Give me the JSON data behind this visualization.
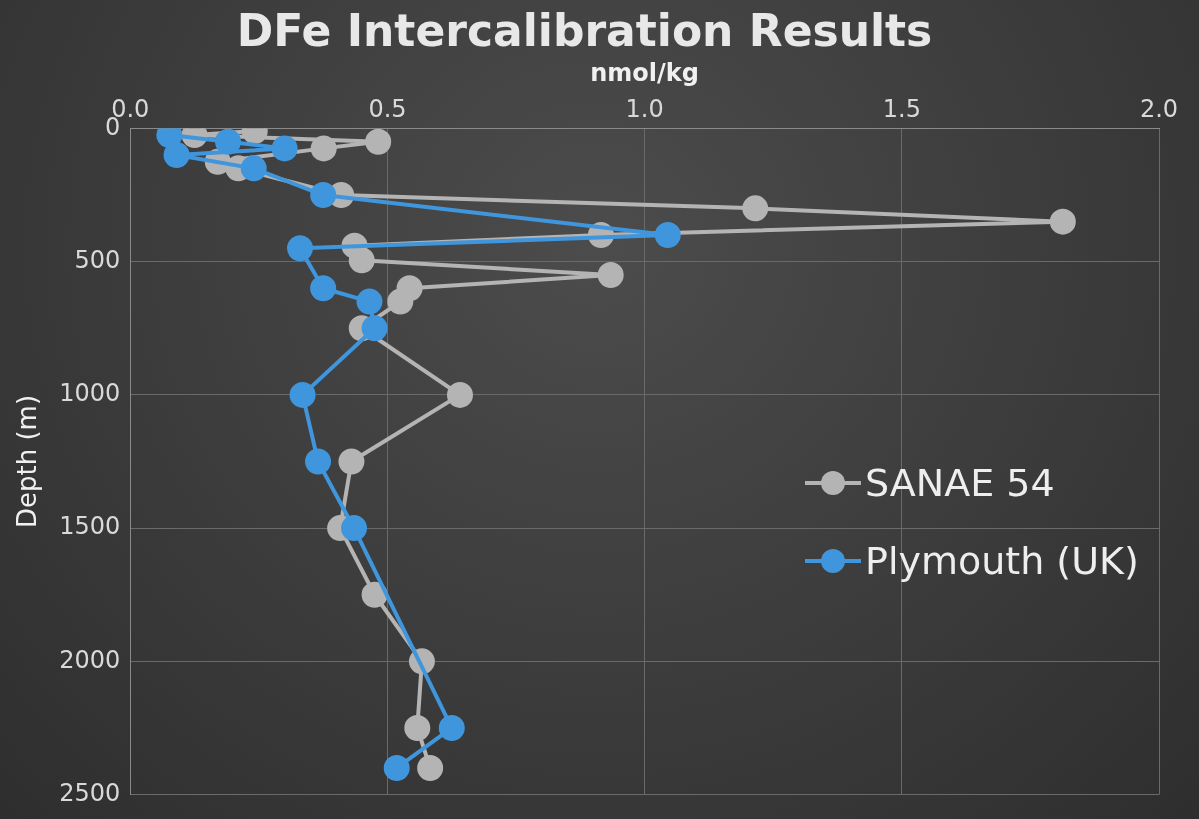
{
  "chart_data": {
    "type": "line",
    "title": "DFe Intercalibration Results",
    "xlabel": "nmol/kg",
    "ylabel": "Depth (m)",
    "xlim": [
      0,
      2
    ],
    "xticks": [
      {
        "value": 0,
        "label": "0.0"
      },
      {
        "value": 0.5,
        "label": "0.5"
      },
      {
        "value": 1,
        "label": "1.0"
      },
      {
        "value": 1.5,
        "label": "1.5"
      },
      {
        "value": 2,
        "label": "2.0"
      }
    ],
    "ylim": [
      2500,
      0
    ],
    "yticks": [
      0,
      500,
      1000,
      1500,
      2000,
      2500
    ],
    "grid": true,
    "legend": "right",
    "marker": "circle",
    "line_style": "solid",
    "series": [
      {
        "name": "SANAE 54",
        "color": "#b4b4b4",
        "x": [
          0.242,
          0.125,
          0.482,
          0.376,
          0.17,
          0.21,
          0.41,
          1.215,
          1.813,
          0.915,
          0.436,
          0.45,
          0.934,
          0.543,
          0.525,
          0.45,
          0.641,
          0.43,
          0.408,
          0.475,
          0.567,
          0.558,
          0.583
        ],
        "values": [
          10,
          25,
          50,
          75,
          125,
          150,
          250,
          300,
          350,
          400,
          440,
          495,
          550,
          600,
          650,
          750,
          1000,
          1250,
          1500,
          1750,
          2000,
          2250,
          2400
        ]
      },
      {
        "name": "Plymouth (UK)",
        "color": "#3f96dc",
        "x": [
          0.076,
          0.19,
          0.3,
          0.09,
          0.24,
          0.375,
          1.045,
          0.33,
          0.375,
          0.465,
          0.475,
          0.335,
          0.365,
          0.435,
          0.625,
          0.518
        ],
        "values": [
          25,
          50,
          75,
          100,
          150,
          250,
          400,
          450,
          600,
          650,
          750,
          1000,
          1250,
          1500,
          2250,
          2400
        ]
      }
    ]
  }
}
